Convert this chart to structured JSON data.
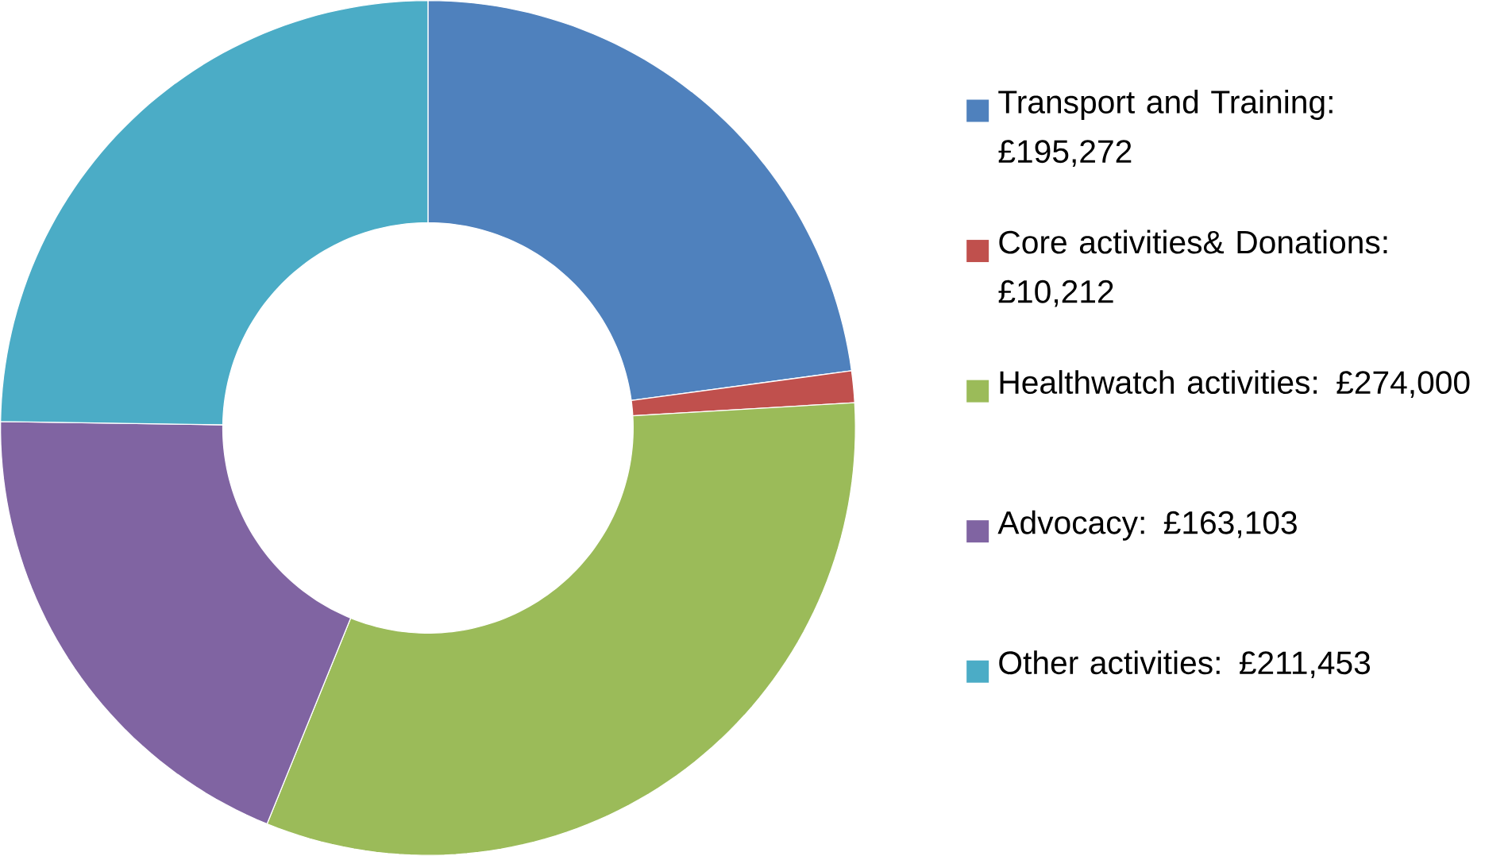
{
  "chart_data": {
    "type": "donut",
    "categories": [
      "Transport and Training: £195,272",
      "Core activities& Donations: £10,212",
      "Healthwatch activities: £274,000",
      "Advocacy: £163,103",
      "Other activities: £211,453"
    ],
    "values": [
      195272,
      10212,
      274000,
      163103,
      211453
    ],
    "colors": [
      "#4f81bd",
      "#c0504d",
      "#9bbb59",
      "#8064a2",
      "#4bacc6"
    ],
    "legend": "right"
  }
}
